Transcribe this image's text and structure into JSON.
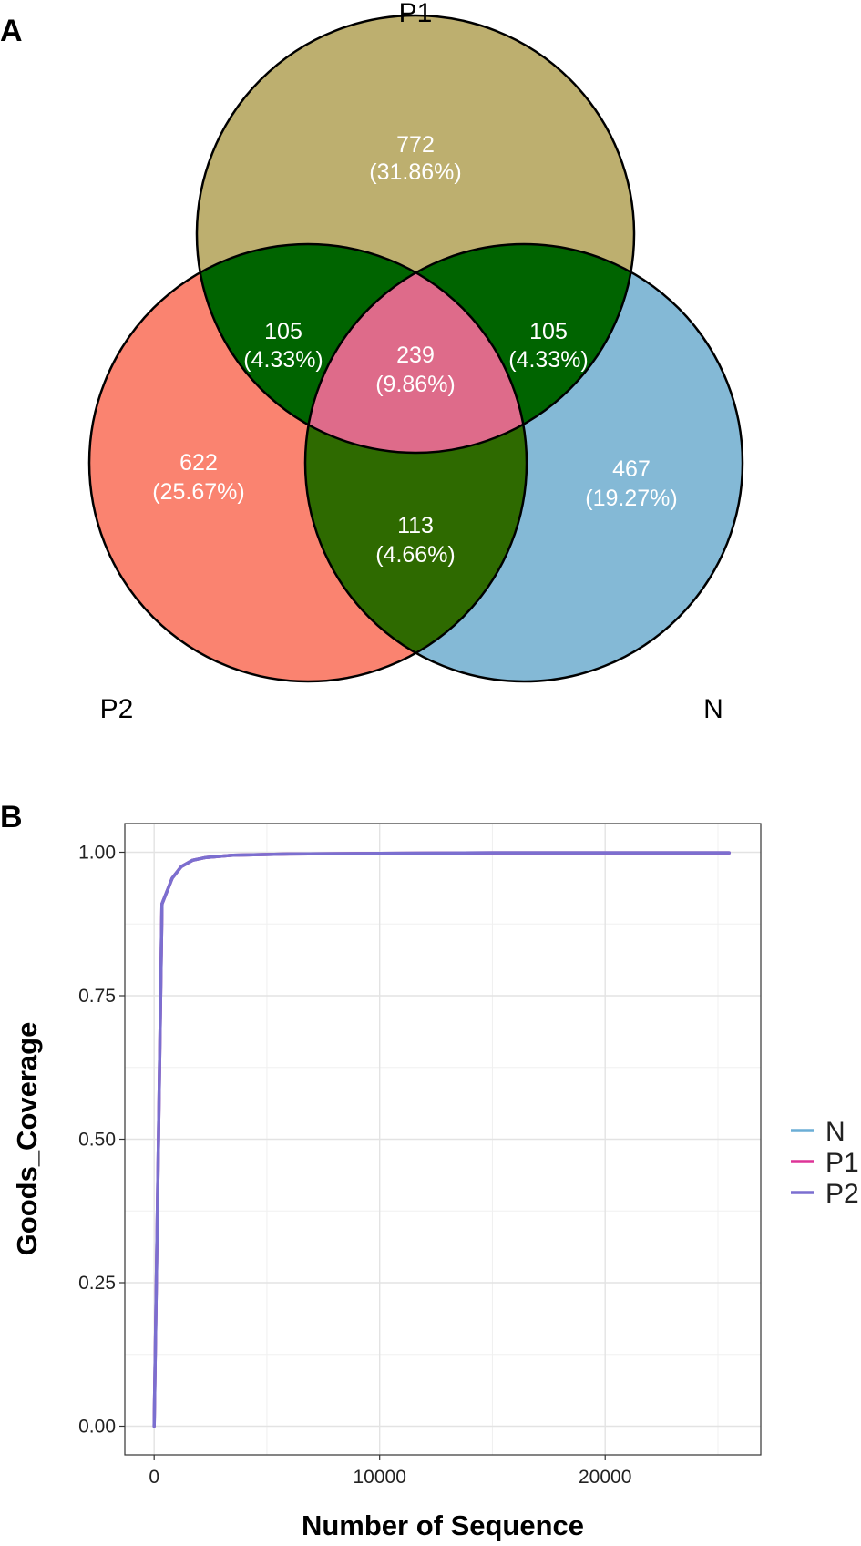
{
  "panel_a": {
    "letter": "A",
    "sets": [
      {
        "name": "P1",
        "color": "#BDAF6F"
      },
      {
        "name": "P2",
        "color": "#FA8370"
      },
      {
        "name": "N",
        "color": "#84B9D6"
      }
    ],
    "regions": [
      {
        "id": "p1-only",
        "count": "772",
        "percent": "(31.86%)",
        "color": "#BDAF6F"
      },
      {
        "id": "p1-p2",
        "count": "105",
        "percent": "(4.33%)",
        "color": "#006400"
      },
      {
        "id": "p1-n",
        "count": "105",
        "percent": "(4.33%)",
        "color": "#006400"
      },
      {
        "id": "all",
        "count": "239",
        "percent": "(9.86%)",
        "color": "#DE6B8A"
      },
      {
        "id": "p2-only",
        "count": "622",
        "percent": "(25.67%)",
        "color": "#FA8370"
      },
      {
        "id": "p2-n",
        "count": "113",
        "percent": "(4.66%)",
        "color": "#2E6A00"
      },
      {
        "id": "n-only",
        "count": "467",
        "percent": "(19.27%)",
        "color": "#84B9D6"
      }
    ]
  },
  "panel_b": {
    "letter": "B",
    "chart_data": {
      "type": "line",
      "title": "",
      "xlabel": "Number of Sequence",
      "ylabel": "Goods_Coverage",
      "xlim": [
        -1300,
        26900
      ],
      "ylim": [
        -0.05,
        1.05
      ],
      "xticks": [
        0,
        10000,
        20000
      ],
      "xtick_labels": [
        "0",
        "10000",
        "20000"
      ],
      "yticks": [
        0,
        0.25,
        0.5,
        0.75,
        1.0
      ],
      "ytick_labels": [
        "0.00",
        "0.25",
        "0.50",
        "0.75",
        "1.00"
      ],
      "grid": true,
      "legend_position": "right",
      "series": [
        {
          "name": "N",
          "color": "#6BAED6",
          "x": [
            1,
            350,
            800,
            1200,
            1700,
            2300,
            3500,
            6000,
            10000,
            15000,
            20000,
            25500
          ],
          "y": [
            0.0,
            0.91,
            0.955,
            0.975,
            0.986,
            0.991,
            0.995,
            0.997,
            0.998,
            0.999,
            0.999,
            0.999
          ]
        },
        {
          "name": "P1",
          "color": "#DD3497",
          "x": [
            1,
            350,
            800,
            1200,
            1700,
            2300,
            3500,
            6000,
            10000,
            15000,
            20000,
            25500
          ],
          "y": [
            0.0,
            0.91,
            0.955,
            0.975,
            0.986,
            0.991,
            0.995,
            0.997,
            0.998,
            0.999,
            0.999,
            0.999
          ]
        },
        {
          "name": "P2",
          "color": "#7B6FD0",
          "x": [
            1,
            350,
            800,
            1200,
            1700,
            2300,
            3500,
            6000,
            10000,
            15000,
            20000,
            25500
          ],
          "y": [
            0.0,
            0.91,
            0.955,
            0.975,
            0.986,
            0.991,
            0.995,
            0.997,
            0.998,
            0.999,
            0.999,
            0.999
          ]
        }
      ]
    }
  }
}
